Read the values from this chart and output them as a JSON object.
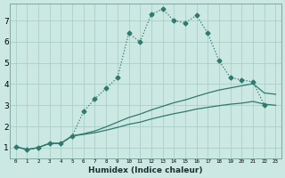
{
  "xlabel": "Humidex (Indice chaleur)",
  "background_color": "#cce8e2",
  "grid_color": "#aacfc8",
  "line_color": "#2d7a6e",
  "x_ticks": [
    0,
    1,
    2,
    3,
    4,
    5,
    6,
    7,
    8,
    9,
    10,
    11,
    12,
    13,
    14,
    15,
    16,
    17,
    18,
    19,
    20,
    21,
    22,
    23
  ],
  "y_ticks": [
    1,
    2,
    3,
    4,
    5,
    6,
    7
  ],
  "ylim": [
    0.5,
    7.8
  ],
  "xlim": [
    -0.5,
    23.5
  ],
  "series": [
    {
      "x": [
        0,
        1,
        2,
        3,
        4,
        5,
        6,
        7,
        8,
        9,
        10,
        11,
        12,
        13,
        14,
        15,
        16,
        17,
        18,
        19,
        20,
        21,
        22
      ],
      "y": [
        1.05,
        0.9,
        1.0,
        1.2,
        1.2,
        1.55,
        2.7,
        3.3,
        3.8,
        4.3,
        6.4,
        6.0,
        7.3,
        7.55,
        7.0,
        6.9,
        7.25,
        6.4,
        5.1,
        4.3,
        4.2,
        4.1,
        3.0
      ],
      "marker": "D",
      "markersize": 2.5,
      "linewidth": 0.9,
      "linestyle": ":"
    },
    {
      "x": [
        0,
        1,
        2,
        3,
        4,
        5,
        6,
        7,
        8,
        9,
        10,
        11,
        12,
        13,
        14,
        15,
        16,
        17,
        18,
        19,
        20,
        21,
        22,
        23
      ],
      "y": [
        1.05,
        0.9,
        1.0,
        1.2,
        1.2,
        1.55,
        1.62,
        1.7,
        1.82,
        1.95,
        2.1,
        2.2,
        2.35,
        2.48,
        2.6,
        2.7,
        2.82,
        2.9,
        2.98,
        3.05,
        3.1,
        3.18,
        3.05,
        3.0
      ],
      "marker": null,
      "linewidth": 0.9,
      "linestyle": "-"
    },
    {
      "x": [
        0,
        1,
        2,
        3,
        4,
        5,
        6,
        7,
        8,
        9,
        10,
        11,
        12,
        13,
        14,
        15,
        16,
        17,
        18,
        19,
        20,
        21,
        22,
        23
      ],
      "y": [
        1.05,
        0.9,
        1.0,
        1.2,
        1.2,
        1.55,
        1.65,
        1.78,
        1.98,
        2.2,
        2.42,
        2.58,
        2.78,
        2.95,
        3.12,
        3.25,
        3.42,
        3.58,
        3.72,
        3.82,
        3.92,
        4.02,
        3.58,
        3.52
      ],
      "marker": null,
      "linewidth": 0.9,
      "linestyle": "-"
    }
  ]
}
